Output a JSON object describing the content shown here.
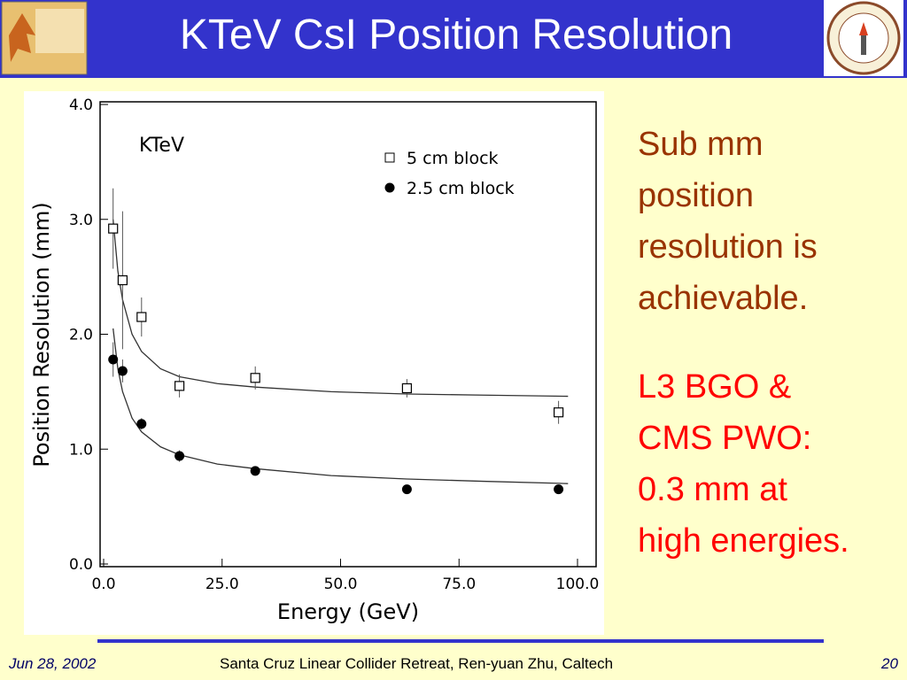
{
  "header": {
    "title": "KTeV CsI Position Resolution"
  },
  "chart_data": {
    "type": "scatter",
    "annotation": "KTeV",
    "xlabel": "Energy  (GeV)",
    "ylabel": "Position Resolution  (mm)",
    "xlim": [
      0,
      100
    ],
    "ylim": [
      0,
      4
    ],
    "xticks": [
      {
        "value": 0,
        "label": "0.0"
      },
      {
        "value": 25,
        "label": "25.0"
      },
      {
        "value": 50,
        "label": "50.0"
      },
      {
        "value": 75,
        "label": "75.0"
      },
      {
        "value": 100,
        "label": "100.0"
      }
    ],
    "yticks": [
      {
        "value": 0,
        "label": "0.0"
      },
      {
        "value": 1,
        "label": "1.0"
      },
      {
        "value": 2,
        "label": "2.0"
      },
      {
        "value": 3,
        "label": "3.0"
      },
      {
        "value": 4,
        "label": "4.0"
      }
    ],
    "series": [
      {
        "name": "5 cm  block",
        "marker": "open-square",
        "color": "#000000",
        "x": [
          2,
          4,
          8,
          16,
          32,
          64,
          96
        ],
        "values": [
          2.92,
          2.47,
          2.15,
          1.55,
          1.62,
          1.53,
          1.32
        ],
        "errors": [
          0.35,
          0.6,
          0.17,
          0.1,
          0.1,
          0.08,
          0.1
        ]
      },
      {
        "name": "2.5 cm  block",
        "marker": "filled-circle",
        "color": "#000000",
        "x": [
          2,
          4,
          8,
          16,
          32,
          64,
          96
        ],
        "values": [
          1.78,
          1.68,
          1.22,
          0.94,
          0.81,
          0.65,
          0.65
        ],
        "errors": [
          0.15,
          0.1,
          0.05,
          0.05,
          0.04,
          0.03,
          0.03
        ]
      }
    ],
    "curves": [
      {
        "x": [
          2,
          3,
          4,
          6,
          8,
          12,
          16,
          24,
          32,
          48,
          64,
          80,
          98
        ],
        "values": [
          3.0,
          2.55,
          2.3,
          2.0,
          1.85,
          1.7,
          1.63,
          1.57,
          1.54,
          1.5,
          1.48,
          1.47,
          1.46
        ]
      },
      {
        "x": [
          2,
          3,
          4,
          6,
          8,
          12,
          16,
          24,
          32,
          48,
          64,
          80,
          98
        ],
        "values": [
          2.05,
          1.7,
          1.5,
          1.27,
          1.15,
          1.02,
          0.95,
          0.87,
          0.83,
          0.77,
          0.74,
          0.72,
          0.7
        ]
      }
    ]
  },
  "body": {
    "paragraphs": [
      "Sub mm position resolution is achievable.",
      "L3 BGO & CMS PWO: 0.3 mm at high energies."
    ]
  },
  "footer": {
    "date": "Jun 28, 2002",
    "event": "Santa Cruz Linear Collider  Retreat, Ren-yuan Zhu, Caltech",
    "page": "20"
  }
}
